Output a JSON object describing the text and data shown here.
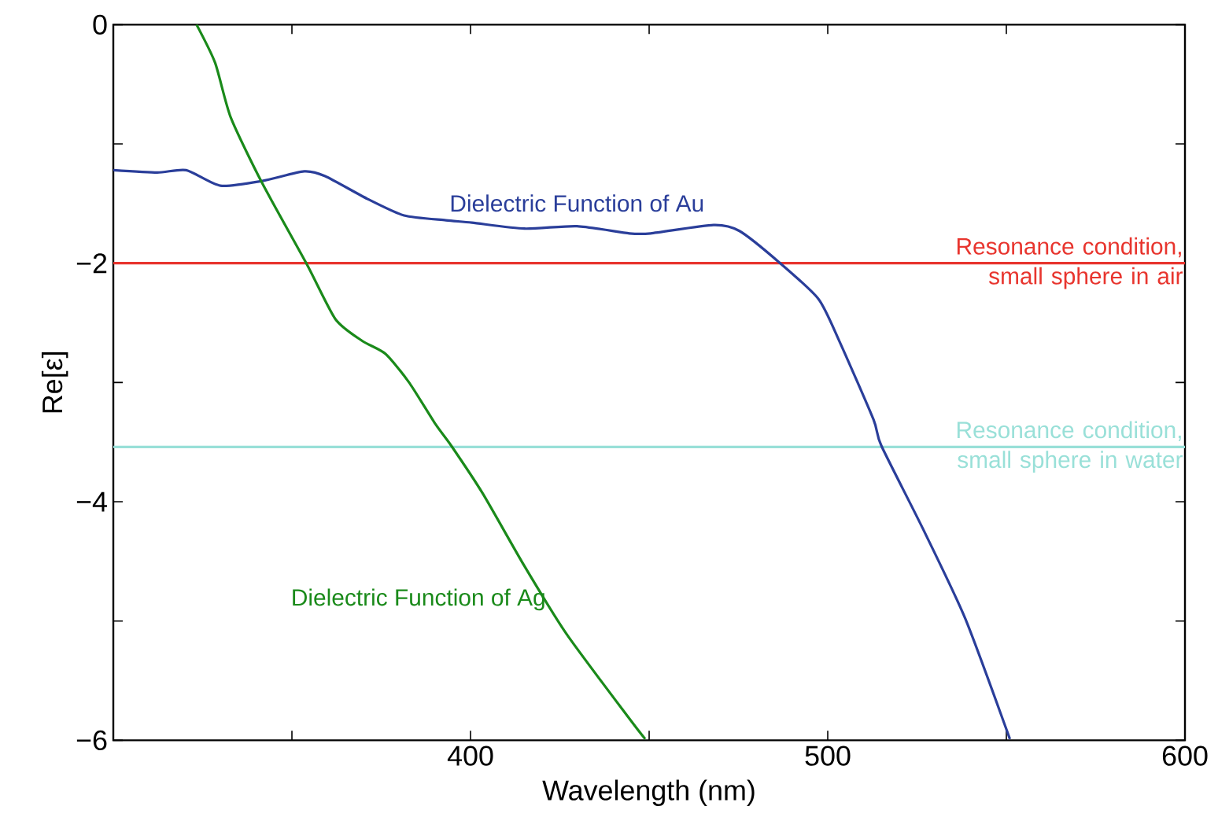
{
  "chart_data": {
    "type": "line",
    "xlabel": "Wavelength (nm)",
    "ylabel": "Re[ε]",
    "xlim": [
      300,
      600
    ],
    "ylim": [
      -6,
      0
    ],
    "xticks": [
      {
        "value": 350,
        "label": null
      },
      400,
      {
        "value": 450,
        "label": null
      },
      500,
      {
        "value": 550,
        "label": null
      },
      600
    ],
    "yticks": [
      {
        "value": -6,
        "label": "−6"
      },
      {
        "value": -5,
        "label": null
      },
      {
        "value": -4,
        "label": "−4"
      },
      {
        "value": -3,
        "label": null
      },
      {
        "value": -2,
        "label": "−2"
      },
      {
        "value": -1,
        "label": null
      },
      0
    ],
    "grid": false,
    "line_style": "solid",
    "marker": "none",
    "series": [
      {
        "name": "Dielectric Function of Au",
        "color": "#2a3e9a",
        "x": [
          300,
          312.3,
          320.4,
          330,
          341.7,
          353.4,
          359.3,
          371.1,
          381.4,
          393.1,
          400.4,
          415.1,
          429.8,
          444.5,
          450.4,
          468,
          475.3,
          486.3,
          497.4,
          503.2,
          512.8,
          515,
          526.7,
          538.5,
          551
        ],
        "values": [
          -1.22,
          -1.24,
          -1.22,
          -1.35,
          -1.31,
          -1.23,
          -1.27,
          -1.46,
          -1.6,
          -1.64,
          -1.66,
          -1.71,
          -1.69,
          -1.75,
          -1.75,
          -1.68,
          -1.73,
          -1.99,
          -2.3,
          -2.65,
          -3.31,
          -3.53,
          -4.23,
          -4.98,
          -5.99
        ]
      },
      {
        "name": "Dielectric Function of Ag",
        "color": "#1a8a1a",
        "x": [
          323.3,
          328.5,
          332.9,
          341.7,
          354.2,
          362.2,
          369.6,
          376.2,
          382.8,
          390.2,
          394.6,
          403.4,
          415.1,
          426.9,
          444.5,
          448.9
        ],
        "values": [
          0,
          -0.32,
          -0.78,
          -1.33,
          -2.01,
          -2.47,
          -2.65,
          -2.76,
          -3.0,
          -3.35,
          -3.53,
          -3.93,
          -4.54,
          -5.11,
          -5.82,
          -5.99
        ]
      }
    ],
    "ref_lines": [
      {
        "axis": "y",
        "value": -2,
        "label": "Resonance condition, small sphere in air",
        "color": "#e8352e"
      },
      {
        "axis": "y",
        "value": -3.54,
        "label": "Resonance condition, small sphere in water",
        "color": "#99e0d8"
      }
    ]
  }
}
